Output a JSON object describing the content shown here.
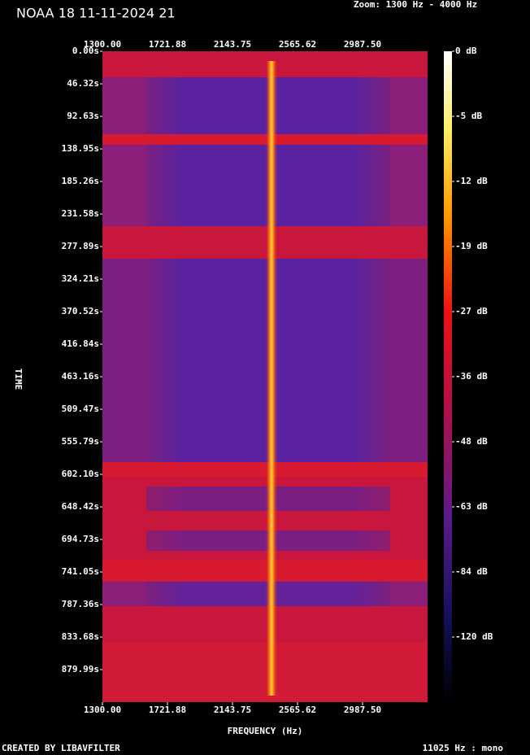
{
  "chart_data": {
    "type": "spectrogram",
    "title": "NOAA 18 11-11-2024 21",
    "subtitle": "Zoom: 1300 Hz - 4000 Hz",
    "x_label": "FREQUENCY (Hz)",
    "y_label": "TIME",
    "footer_left": "CREATED BY LIBAVFILTER",
    "footer_right": "11025 Hz : mono",
    "xlim": [
      1300,
      3409.375
    ],
    "xticks": [
      {
        "value": 1300,
        "label": "1300.00"
      },
      {
        "value": 1721.88,
        "label": "1721.88"
      },
      {
        "value": 2143.75,
        "label": "2143.75"
      },
      {
        "value": 2565.62,
        "label": "2565.62"
      },
      {
        "value": 2987.5,
        "label": "2987.50"
      }
    ],
    "ylim": [
      0,
      926.3
    ],
    "yticks": [
      {
        "value": 0,
        "label": "0.00s"
      },
      {
        "value": 46.32,
        "label": "46.32s"
      },
      {
        "value": 92.63,
        "label": "92.63s"
      },
      {
        "value": 138.95,
        "label": "138.95s"
      },
      {
        "value": 185.26,
        "label": "185.26s"
      },
      {
        "value": 231.58,
        "label": "231.58s"
      },
      {
        "value": 277.89,
        "label": "277.89s"
      },
      {
        "value": 324.21,
        "label": "324.21s"
      },
      {
        "value": 370.52,
        "label": "370.52s"
      },
      {
        "value": 416.84,
        "label": "416.84s"
      },
      {
        "value": 463.16,
        "label": "463.16s"
      },
      {
        "value": 509.47,
        "label": "509.47s"
      },
      {
        "value": 555.79,
        "label": "555.79s"
      },
      {
        "value": 602.1,
        "label": "602.10s"
      },
      {
        "value": 648.42,
        "label": "648.42s"
      },
      {
        "value": 694.73,
        "label": "694.73s"
      },
      {
        "value": 741.05,
        "label": "741.05s"
      },
      {
        "value": 787.36,
        "label": "787.36s"
      },
      {
        "value": 833.68,
        "label": "833.68s"
      },
      {
        "value": 879.99,
        "label": "879.99s"
      }
    ],
    "colorbar_ticks": [
      {
        "value": 0,
        "label": "0 dB"
      },
      {
        "value": -5,
        "label": "-5 dB"
      },
      {
        "value": -12,
        "label": "-12 dB"
      },
      {
        "value": -19,
        "label": "-19 dB"
      },
      {
        "value": -27,
        "label": "-27 dB"
      },
      {
        "value": -36,
        "label": "-36 dB"
      },
      {
        "value": -48,
        "label": "-48 dB"
      },
      {
        "value": -63,
        "label": "-63 dB"
      },
      {
        "value": -84,
        "label": "-84 dB"
      },
      {
        "value": -120,
        "label": "-120 dB"
      }
    ]
  }
}
